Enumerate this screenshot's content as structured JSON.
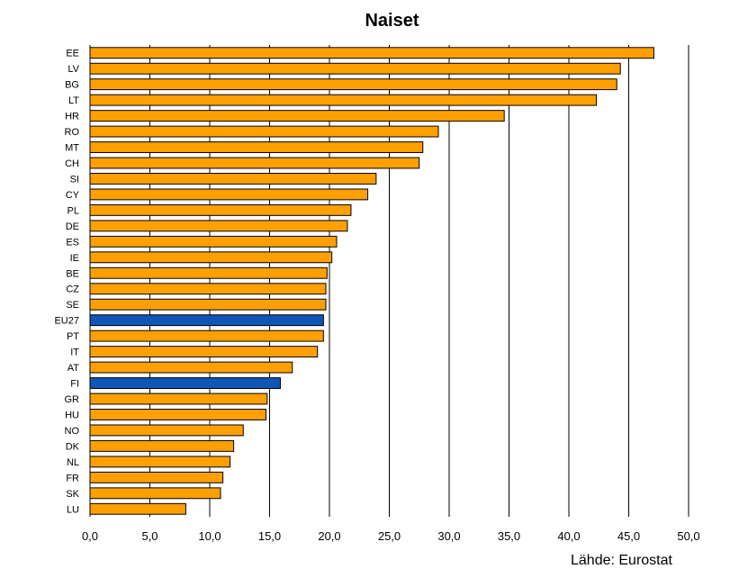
{
  "chart_data": {
    "type": "bar",
    "orientation": "horizontal",
    "title": "Naiset",
    "source_note": "Lähde: Eurostat",
    "xlim": [
      0,
      50
    ],
    "x_ticks": [
      "0,0",
      "5,0",
      "10,0",
      "15,0",
      "20,0",
      "25,0",
      "30,0",
      "35,0",
      "40,0",
      "45,0",
      "50,0"
    ],
    "grid": "vertical",
    "default_color": "#FFA000",
    "highlight_color": "#0F56B8",
    "highlighted": [
      "EU27",
      "FI"
    ],
    "categories": [
      "EE",
      "LV",
      "BG",
      "LT",
      "HR",
      "RO",
      "MT",
      "CH",
      "SI",
      "CY",
      "PL",
      "DE",
      "ES",
      "IE",
      "BE",
      "CZ",
      "SE",
      "EU27",
      "PT",
      "IT",
      "AT",
      "FI",
      "GR",
      "HU",
      "NO",
      "DK",
      "NL",
      "FR",
      "SK",
      "LU"
    ],
    "values": [
      47.1,
      44.3,
      44.0,
      42.3,
      34.6,
      29.1,
      27.8,
      27.5,
      23.9,
      23.2,
      21.8,
      21.5,
      20.6,
      20.2,
      19.8,
      19.7,
      19.7,
      19.5,
      19.5,
      19.0,
      16.9,
      15.9,
      14.8,
      14.7,
      12.8,
      12.0,
      11.7,
      11.1,
      10.9,
      8.0
    ]
  }
}
